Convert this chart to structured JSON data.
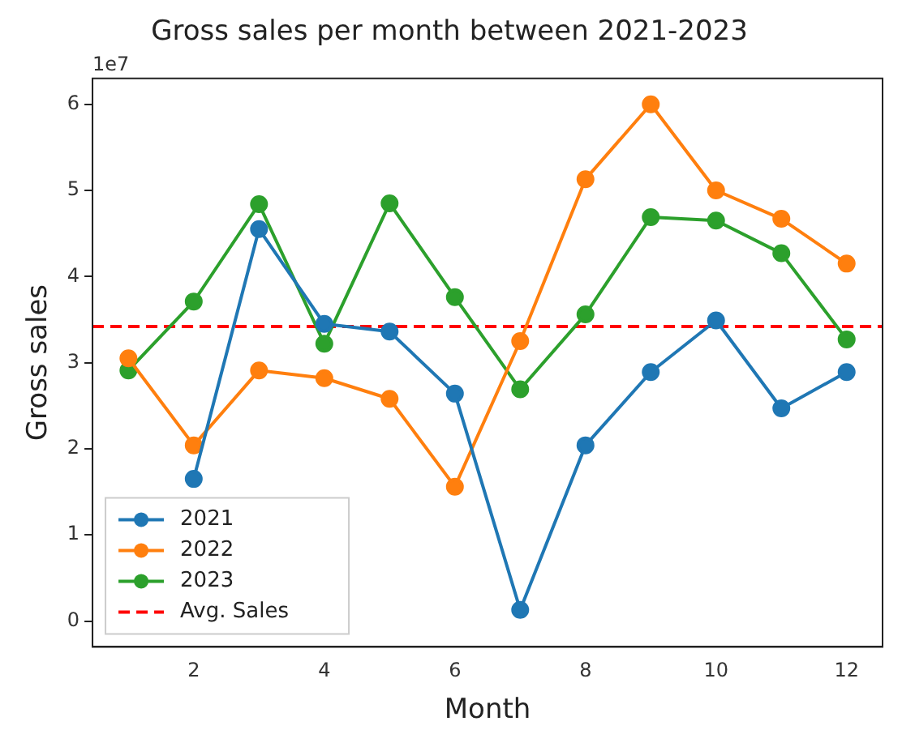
{
  "chart_data": {
    "type": "line",
    "title": "Gross sales per month between 2021-2023",
    "xlabel": "Month",
    "ylabel": "Gross sales",
    "annotations": [
      "1e7"
    ],
    "x": [
      1,
      2,
      3,
      4,
      5,
      6,
      7,
      8,
      9,
      10,
      11,
      12
    ],
    "series": [
      {
        "name": "2021",
        "color": "#1f77b4",
        "values": [
          null,
          1.65,
          4.55,
          3.45,
          3.36,
          2.64,
          0.13,
          2.04,
          2.89,
          3.49,
          2.47,
          2.89
        ]
      },
      {
        "name": "2022",
        "color": "#ff7f0e",
        "values": [
          3.05,
          2.04,
          2.91,
          2.82,
          2.58,
          1.56,
          3.25,
          5.13,
          6.0,
          5.0,
          4.67,
          4.15
        ]
      },
      {
        "name": "2023",
        "color": "#2ca02c",
        "values": [
          2.91,
          3.71,
          4.84,
          3.22,
          4.85,
          3.76,
          2.69,
          3.56,
          4.69,
          4.65,
          4.27,
          3.27
        ]
      }
    ],
    "ref_lines": [
      {
        "axis": "y",
        "value": 3.42,
        "label": "Avg. Sales",
        "color": "#ff0000",
        "line_style": "dashed"
      }
    ],
    "xlim": [
      0.45,
      12.55
    ],
    "xticks": [
      2,
      4,
      6,
      8,
      10,
      12
    ],
    "ylim": [
      -0.3,
      6.3
    ],
    "yticks": [
      0,
      1,
      2,
      3,
      4,
      5,
      6
    ],
    "grid": false,
    "legend": "bottom left",
    "marker": "circle",
    "line_style": "solid"
  }
}
